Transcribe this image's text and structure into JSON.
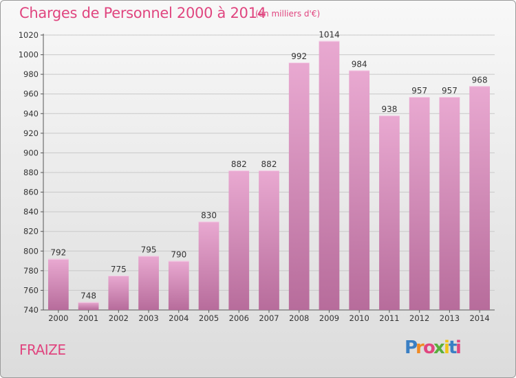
{
  "header": {
    "title": "Charges de Personnel 2000 à 2014",
    "subtitle": "(en milliers d'€)"
  },
  "commune": "FRAIZE",
  "logo": {
    "text": "Proxiti",
    "colors": [
      "#3a7fc4",
      "#f08a24",
      "#e0457f",
      "#5aae3c",
      "#f0c419",
      "#3a7fc4",
      "#e0457f"
    ]
  },
  "colors": {
    "bar_top": "#e9a9d1",
    "bar_bottom": "#b76c9b",
    "accent": "#e0457f"
  },
  "chart_data": {
    "type": "bar",
    "categories": [
      "2000",
      "2001",
      "2002",
      "2003",
      "2004",
      "2005",
      "2006",
      "2007",
      "2008",
      "2009",
      "2010",
      "2011",
      "2012",
      "2013",
      "2014"
    ],
    "values": [
      792,
      748,
      775,
      795,
      790,
      830,
      882,
      882,
      992,
      1014,
      984,
      938,
      957,
      957,
      968
    ],
    "ylim": [
      740,
      1020
    ],
    "yticks": [
      740,
      760,
      780,
      800,
      820,
      840,
      860,
      880,
      900,
      920,
      940,
      960,
      980,
      1000,
      1020
    ],
    "grid": true,
    "xlabel": "",
    "ylabel": ""
  }
}
